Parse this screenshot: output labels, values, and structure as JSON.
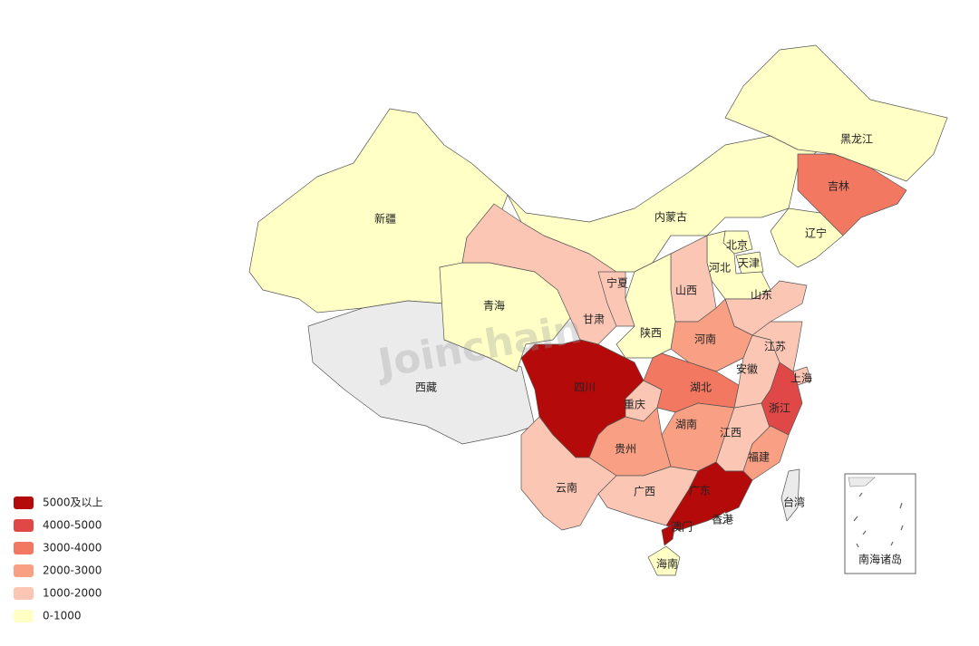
{
  "watermark": "Joinchain",
  "inset_label": "南海诸岛",
  "legend": [
    {
      "label": "5000及以上",
      "color": "#b50a0a"
    },
    {
      "label": "4000-5000",
      "color": "#e04848"
    },
    {
      "label": "3000-4000",
      "color": "#f27862"
    },
    {
      "label": "2000-3000",
      "color": "#f9a084"
    },
    {
      "label": "1000-2000",
      "color": "#fcc6b4"
    },
    {
      "label": "0-1000",
      "color": "#ffffc6"
    }
  ],
  "regions": [
    {
      "name": "新疆",
      "color": "#ffffc6"
    },
    {
      "name": "西藏",
      "color": "#ebebeb"
    },
    {
      "name": "青海",
      "color": "#ffffc6"
    },
    {
      "name": "甘肃",
      "color": "#fcc6b4"
    },
    {
      "name": "内蒙古",
      "color": "#ffffc6"
    },
    {
      "name": "黑龙江",
      "color": "#ffffc6"
    },
    {
      "name": "吉林",
      "color": "#f27862"
    },
    {
      "name": "辽宁",
      "color": "#ffffc6"
    },
    {
      "name": "北京",
      "color": "#ffffc6"
    },
    {
      "name": "天津",
      "color": "#ffffc6"
    },
    {
      "name": "河北",
      "color": "#ffffc6"
    },
    {
      "name": "山西",
      "color": "#fcc6b4"
    },
    {
      "name": "山东",
      "color": "#fcc6b4"
    },
    {
      "name": "河南",
      "color": "#f9a084"
    },
    {
      "name": "陕西",
      "color": "#ffffc6"
    },
    {
      "name": "宁夏",
      "color": "#fcc6b4"
    },
    {
      "name": "四川",
      "color": "#b50a0a"
    },
    {
      "name": "重庆",
      "color": "#fcc6b4"
    },
    {
      "name": "湖北",
      "color": "#f27862"
    },
    {
      "name": "湖南",
      "color": "#f9a084"
    },
    {
      "name": "江西",
      "color": "#fcc6b4"
    },
    {
      "name": "安徽",
      "color": "#fcc6b4"
    },
    {
      "name": "江苏",
      "color": "#fcc6b4"
    },
    {
      "name": "上海",
      "color": "#fcc6b4"
    },
    {
      "name": "浙江",
      "color": "#e04848"
    },
    {
      "name": "福建",
      "color": "#f9a084"
    },
    {
      "name": "贵州",
      "color": "#f9a084"
    },
    {
      "name": "云南",
      "color": "#fcc6b4"
    },
    {
      "name": "广西",
      "color": "#fcc6b4"
    },
    {
      "name": "广东",
      "color": "#b50a0a"
    },
    {
      "name": "海南",
      "color": "#ffffc6"
    },
    {
      "name": "台湾",
      "color": "#ebebeb"
    },
    {
      "name": "香港",
      "color": "#ffffff"
    },
    {
      "name": "澳门",
      "color": "#b50a0a"
    }
  ]
}
